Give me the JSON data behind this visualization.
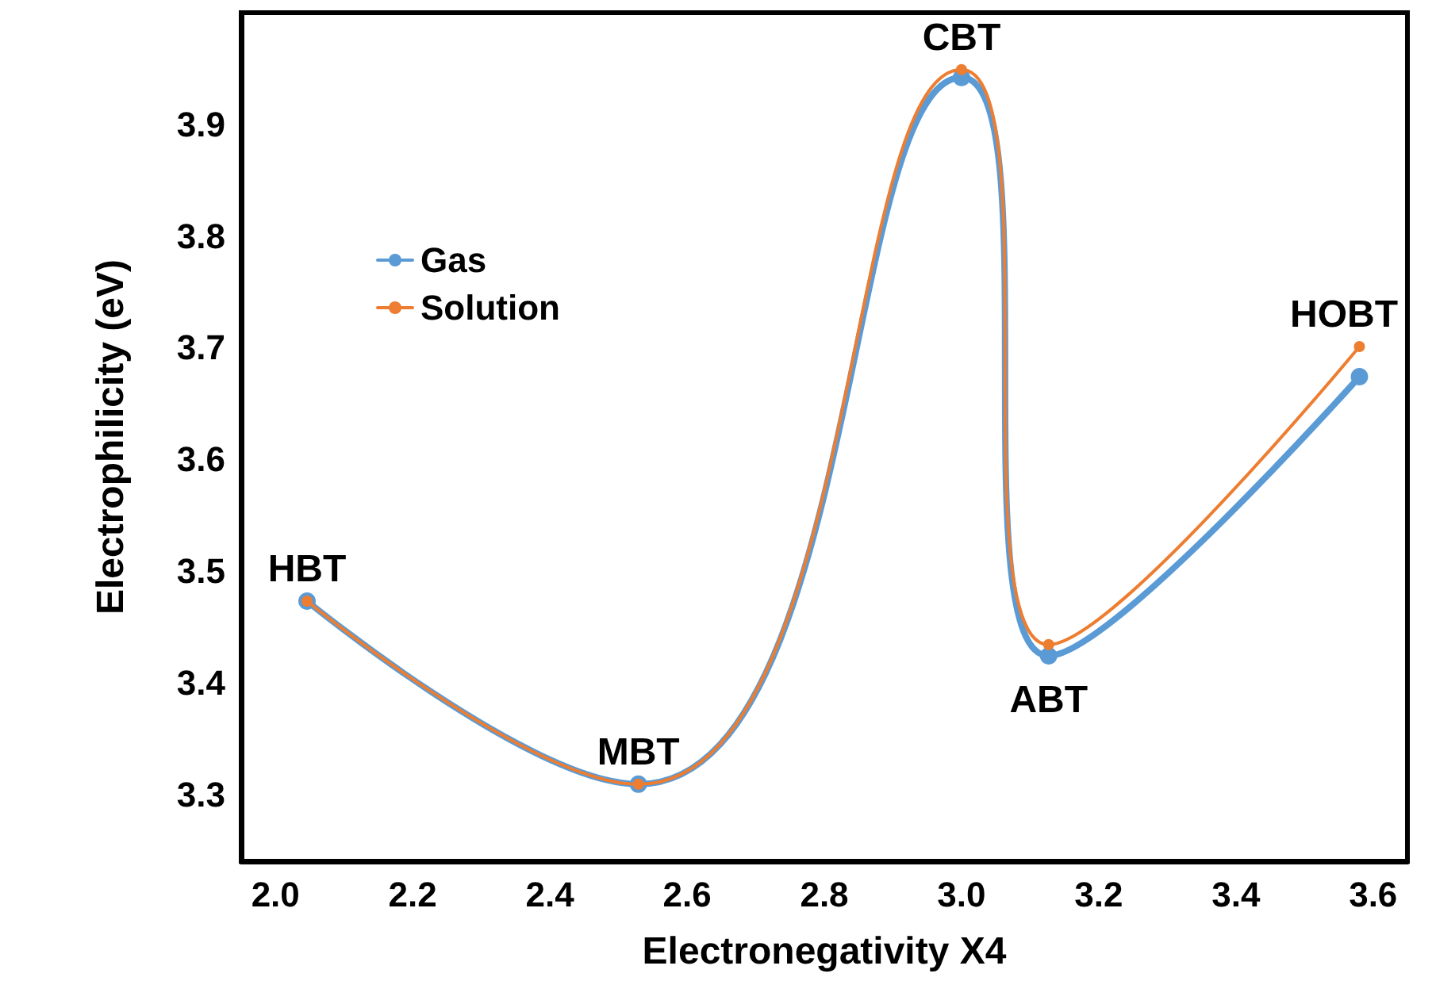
{
  "chart_data": {
    "type": "line",
    "xlabel": "Electronegativity X4",
    "ylabel": "Electrophilicity (eV)",
    "x": [
      2.046,
      2.529,
      3.0,
      3.127,
      3.58
    ],
    "series": [
      {
        "name": "Gas",
        "color": "#5b9bd5",
        "values": [
          3.473,
          3.309,
          3.942,
          3.424,
          3.674
        ]
      },
      {
        "name": "Solution",
        "color": "#ed7d31",
        "values": [
          3.473,
          3.309,
          3.949,
          3.434,
          3.701
        ]
      }
    ],
    "xlim": [
      1.95,
      3.65
    ],
    "xticks": [
      {
        "value": 2,
        "label": "2.0"
      },
      2.2,
      2.4,
      2.6,
      2.8,
      {
        "value": 3,
        "label": "3.0"
      },
      3.2,
      3.4,
      3.6
    ],
    "ylim": [
      3.24,
      4.0
    ],
    "yticks": [
      3.3,
      3.4,
      3.5,
      3.6,
      3.7,
      3.8,
      3.9
    ],
    "annotations": [
      {
        "text": "HBT",
        "x": 2.046,
        "y": 3.473
      },
      {
        "text": "MBT",
        "x": 2.529,
        "y": 3.309
      },
      {
        "text": "CBT",
        "x": 3.0,
        "y": 3.949
      },
      {
        "text": "ABT",
        "x": 3.127,
        "y": 3.424
      },
      {
        "text": "HOBT",
        "x": 3.58,
        "y": 3.701
      }
    ],
    "legend": "top left",
    "marker": "circle",
    "line_style": "solid",
    "grid": false
  }
}
